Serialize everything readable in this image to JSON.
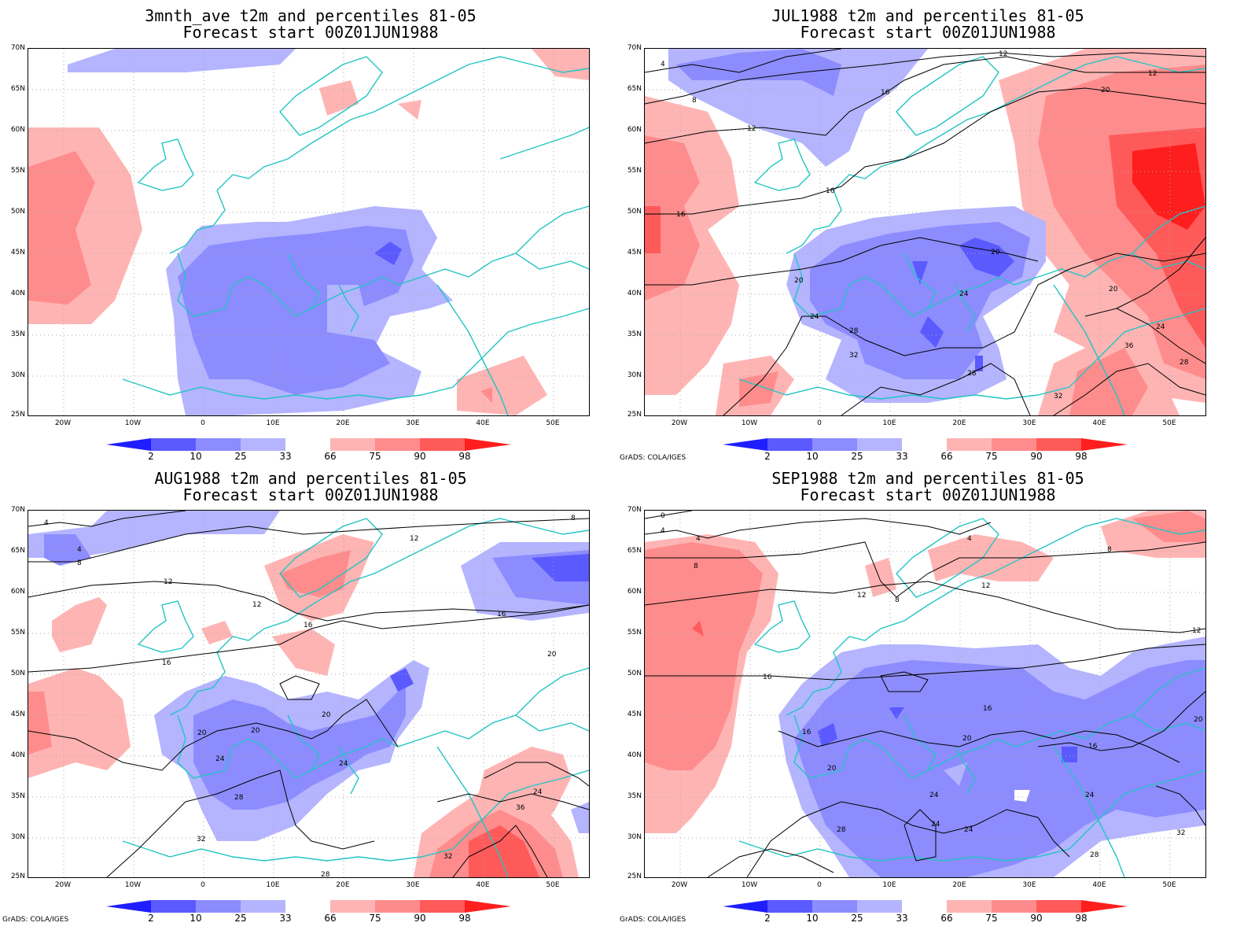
{
  "colorbar": {
    "labels": [
      "2",
      "10",
      "25",
      "33",
      "66",
      "75",
      "90",
      "98"
    ],
    "colors": [
      "#1e1eff",
      "#5a5aff",
      "#8c8cff",
      "#b4b4ff",
      "#ffffff",
      "#ffb4b4",
      "#ff8c8c",
      "#ff5a5a",
      "#ff1e1e"
    ]
  },
  "axes": {
    "lat_labels": [
      "70N",
      "65N",
      "60N",
      "55N",
      "50N",
      "45N",
      "40N",
      "35N",
      "30N",
      "25N"
    ],
    "lon_labels": [
      "20W",
      "10W",
      "0",
      "10E",
      "20E",
      "30E",
      "40E",
      "50E"
    ]
  },
  "credit": "GrADS: COLA/IGES",
  "panels": [
    {
      "title1": "3mnth_ave t2m and percentiles 81-05",
      "title2": "Forecast start 00Z01JUN1988",
      "contours": [],
      "show_credit": false
    },
    {
      "title1": "JUL1988 t2m and percentiles 81-05",
      "title2": "Forecast start 00Z01JUN1988",
      "contours": [
        "4",
        "8",
        "12",
        "12",
        "12",
        "16",
        "16",
        "16",
        "20",
        "20",
        "20",
        "24",
        "24",
        "28",
        "28",
        "32",
        "32",
        "36",
        "20",
        "24",
        "28"
      ],
      "show_credit": true
    },
    {
      "title1": "AUG1988 t2m and percentiles 81-05",
      "title2": "Forecast start 00Z01JUN1988",
      "contours": [
        "4",
        "4",
        "8",
        "8",
        "12",
        "12",
        "12",
        "16",
        "16",
        "16",
        "20",
        "20",
        "20",
        "20",
        "24",
        "24",
        "28",
        "28",
        "32",
        "32",
        "36",
        "24"
      ],
      "show_credit": true
    },
    {
      "title1": "SEP1988 t2m and percentiles 81-05",
      "title2": "Forecast start 00Z01JUN1988",
      "contours": [
        "0",
        "4",
        "4",
        "4",
        "8",
        "8",
        "8",
        "12",
        "12",
        "12",
        "16",
        "16",
        "16",
        "16",
        "20",
        "20",
        "20",
        "24",
        "24",
        "24",
        "24",
        "28",
        "28",
        "32"
      ],
      "show_credit": true
    }
  ]
}
